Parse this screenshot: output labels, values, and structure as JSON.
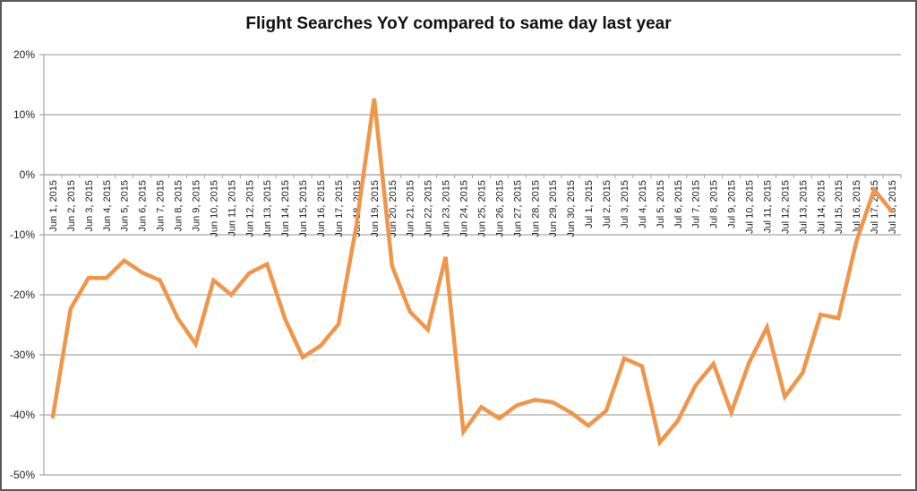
{
  "chart_data": {
    "type": "line",
    "title": "Flight Searches YoY compared to same day last year",
    "xlabel": "",
    "ylabel": "",
    "ylim": [
      -50,
      20
    ],
    "yticks": [
      "20%",
      "10%",
      "0%",
      "-10%",
      "-20%",
      "-30%",
      "-40%",
      "-50%"
    ],
    "grid": true,
    "legend": null,
    "series_color": "#F0964A",
    "categories": [
      "Jun 1, 2015",
      "Jun 2, 2015",
      "Jun 3, 2015",
      "Jun 4, 2015",
      "Jun 5, 2015",
      "Jun 6, 2015",
      "Jun 7, 2015",
      "Jun 8, 2015",
      "Jun 9, 2015",
      "Jun 10, 2015",
      "Jun 11, 2015",
      "Jun 12, 2015",
      "Jun 13, 2015",
      "Jun 14, 2015",
      "Jun 15, 2015",
      "Jun 16, 2015",
      "Jun 17, 2015",
      "Jun 18, 2015",
      "Jun 19, 2015",
      "Jun 20, 2015",
      "Jun 21, 2015",
      "Jun 22, 2015",
      "Jun 23, 2015",
      "Jun 24, 2015",
      "Jun 25, 2015",
      "Jun 26, 2015",
      "Jun 27, 2015",
      "Jun 28, 2015",
      "Jun 29, 2015",
      "Jun 30, 2015",
      "Jul 1, 2015",
      "Jul 2, 2015",
      "Jul 3, 2015",
      "Jul 4, 2015",
      "Jul 5, 2015",
      "Jul 6, 2015",
      "Jul 7, 2015",
      "Jul 8, 2015",
      "Jul 9, 2015",
      "Jul 10, 2015",
      "Jul 11, 2015",
      "Jul 12, 2015",
      "Jul 13, 2015",
      "Jul 14, 2015",
      "Jul 15, 2015",
      "Jul 16, 2015",
      "Jul 17, 2015",
      "Jul 18, 2015"
    ],
    "series": [
      {
        "name": "Flight Searches YoY",
        "values": [
          -40.3,
          -22.3,
          -17.2,
          -17.2,
          -14.3,
          -16.3,
          -17.6,
          -23.9,
          -28.2,
          -17.6,
          -20.0,
          -16.4,
          -14.9,
          -24.0,
          -30.4,
          -28.5,
          -24.9,
          -8.5,
          12.7,
          -15.2,
          -22.8,
          -25.8,
          -13.7,
          -42.8,
          -38.7,
          -40.6,
          -38.4,
          -37.5,
          -37.9,
          -39.6,
          -41.8,
          -39.3,
          -30.6,
          -31.9,
          -44.6,
          -41.0,
          -35.1,
          -31.5,
          -39.6,
          -31.3,
          -25.4,
          -37.0,
          -33.0,
          -23.3,
          -23.9,
          -11.2,
          -2.5,
          -6.1
        ]
      }
    ]
  }
}
